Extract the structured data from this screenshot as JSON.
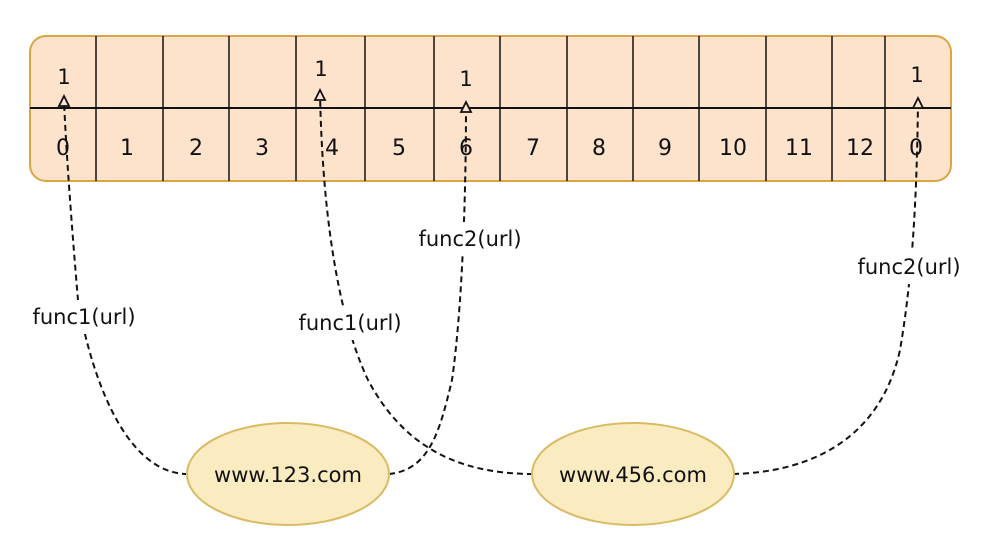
{
  "colors": {
    "array_fill": "#fde2cc",
    "array_stroke": "#d9a545",
    "node_fill": "#faecc0",
    "node_stroke": "#d8bb63",
    "line": "#111111"
  },
  "array": {
    "indices": [
      "0",
      "1",
      "2",
      "3",
      "4",
      "5",
      "6",
      "7",
      "8",
      "9",
      "10",
      "11",
      "12",
      "0"
    ],
    "set_bits": [
      {
        "cell": 0,
        "value": "1"
      },
      {
        "cell": 4,
        "value": "1"
      },
      {
        "cell": 6,
        "value": "1"
      },
      {
        "cell": 13,
        "value": "1"
      }
    ]
  },
  "nodes": [
    {
      "id": "a",
      "label": "www.123.com"
    },
    {
      "id": "b",
      "label": "www.456.com"
    }
  ],
  "edges": [
    {
      "from": "a",
      "to_cell": 0,
      "label": "func1(url)"
    },
    {
      "from": "a",
      "to_cell": 6,
      "label": "func2(url)"
    },
    {
      "from": "b",
      "to_cell": 4,
      "label": "func1(url)"
    },
    {
      "from": "b",
      "to_cell": 13,
      "label": "func2(url)"
    }
  ]
}
